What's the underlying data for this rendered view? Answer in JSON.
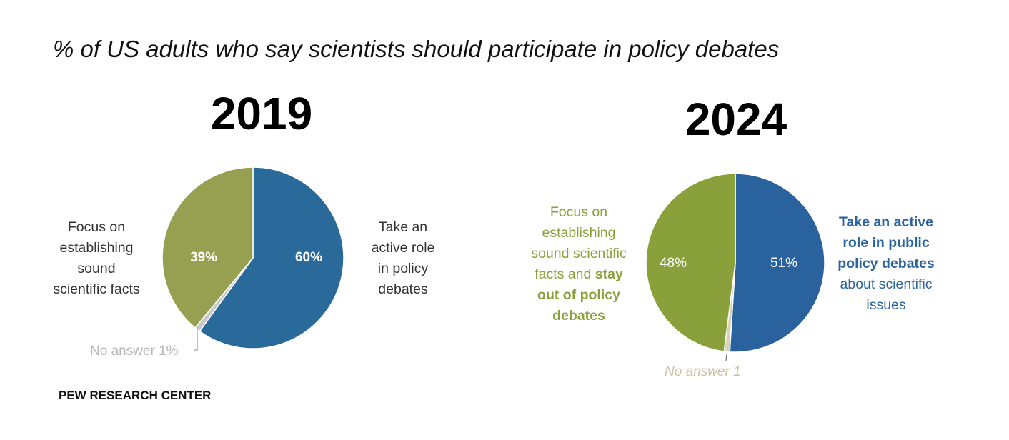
{
  "title": "% of US adults who say scientists should participate in policy debates",
  "footer": "PEW RESEARCH CENTER",
  "chart_data": [
    {
      "type": "pie",
      "title": "2019",
      "slices": [
        {
          "name": "active",
          "label_lines": [
            [
              {
                "t": "Take an"
              }
            ],
            [
              {
                "t": "active role"
              }
            ],
            [
              {
                "t": "in policy"
              }
            ],
            [
              {
                "t": "debates"
              }
            ]
          ],
          "value": 60,
          "value_label": "60%",
          "color": "#2a6a9b",
          "label_color": "#333333"
        },
        {
          "name": "no-answer",
          "label_lines": [
            [
              {
                "t": "No answer"
              }
            ]
          ],
          "value": 1,
          "value_label": "1%",
          "color": "#c8c8c8",
          "label_color": "#b5b5b5"
        },
        {
          "name": "focus",
          "label_lines": [
            [
              {
                "t": "Focus on"
              }
            ],
            [
              {
                "t": "establishing"
              }
            ],
            [
              {
                "t": "sound"
              }
            ],
            [
              {
                "t": "scientific facts"
              }
            ]
          ],
          "value": 39,
          "value_label": "39%",
          "color": "#97a051",
          "label_color": "#333333"
        }
      ]
    },
    {
      "type": "pie",
      "title": "2024",
      "slices": [
        {
          "name": "active",
          "label_lines": [
            [
              {
                "t": "Take an active",
                "b": true
              }
            ],
            [
              {
                "t": "role in public",
                "b": true
              }
            ],
            [
              {
                "t": "policy debates",
                "b": true
              }
            ],
            [
              {
                "t": "about scientific"
              }
            ],
            [
              {
                "t": "issues"
              }
            ]
          ],
          "value": 51,
          "value_label": "51%",
          "color": "#2a629e",
          "label_color": "#2a629e"
        },
        {
          "name": "no-answer",
          "label_lines": [
            [
              {
                "t": "No answer"
              }
            ]
          ],
          "value": 1,
          "value_label": "1",
          "color": "#d7d3b8",
          "label_color": "#c9c3a2"
        },
        {
          "name": "focus",
          "label_lines": [
            [
              {
                "t": "Focus on"
              }
            ],
            [
              {
                "t": "establishing"
              }
            ],
            [
              {
                "t": "sound scientific"
              }
            ],
            [
              {
                "t": "facts and "
              },
              {
                "t": "stay",
                "b": true
              }
            ],
            [
              {
                "t": "out of policy",
                "b": true
              }
            ],
            [
              {
                "t": "debates",
                "b": true
              }
            ]
          ],
          "value": 48,
          "value_label": "48%",
          "color": "#8aa03a",
          "label_color": "#8aa03a"
        }
      ]
    }
  ]
}
